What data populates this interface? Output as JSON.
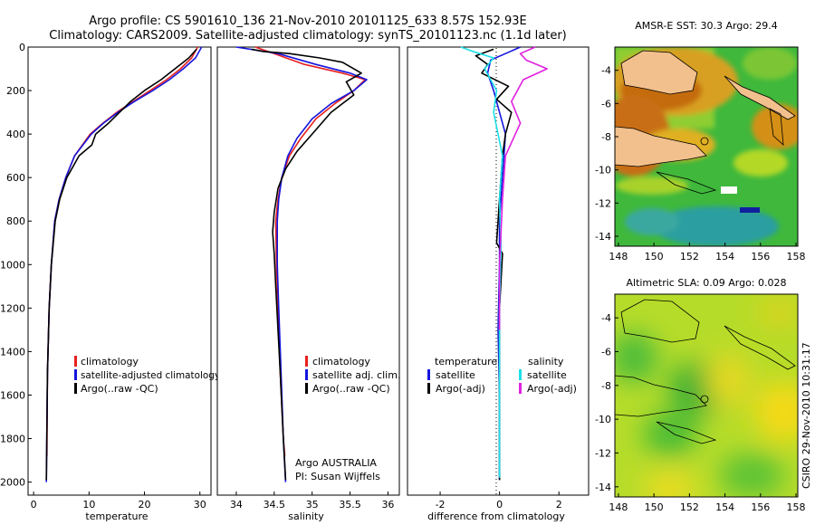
{
  "title_line1": "Argo profile: CS 5901610_136 21-Nov-2010 20101125_633 8.57S 152.93E",
  "title_line2": "Climatology: CARS2009. Satellite-adjusted climatology: synTS_20101123.nc (1.1d later)",
  "side_credit": "CSIRO 29-Nov-2010 10:31:17",
  "colors": {
    "climatology": "#e8201e",
    "satellite": "#1515dd",
    "argo": "#000000",
    "sat_salinity": "#18e0e8",
    "argo_adj_salinity": "#e020e0"
  },
  "chart_data": [
    {
      "type": "line",
      "xlabel": "temperature",
      "ylabel": "",
      "xlim": [
        -1,
        32
      ],
      "ylim": [
        2060,
        0
      ],
      "y_reversed": true,
      "xticks": [
        0,
        10,
        20,
        30
      ],
      "yticks": [
        0,
        200,
        400,
        600,
        800,
        1000,
        1200,
        1400,
        1600,
        1800,
        2000
      ],
      "legend": [
        "climatology",
        "satellite-adjusted climatology",
        "Argo(..raw -QC)"
      ],
      "legend_position": "lower-right",
      "series": [
        {
          "name": "climatology",
          "color": "#e8201e",
          "x": [
            29.6,
            28.5,
            26.5,
            24.0,
            21.0,
            18.0,
            15.0,
            12.5,
            10.2,
            8.8,
            7.4,
            5.8,
            4.6,
            3.8,
            3.2,
            2.8,
            2.5,
            2.4
          ],
          "y": [
            0,
            50,
            100,
            150,
            200,
            250,
            300,
            350,
            400,
            450,
            500,
            600,
            700,
            800,
            1000,
            1200,
            1500,
            1880
          ]
        },
        {
          "name": "satellite-adjusted climatology",
          "color": "#1515dd",
          "x": [
            30.3,
            29.2,
            27.0,
            24.5,
            21.5,
            18.2,
            15.2,
            12.6,
            10.4,
            8.9,
            7.4,
            5.8,
            4.6,
            3.8,
            3.2,
            2.8,
            2.5,
            2.3
          ],
          "y": [
            0,
            50,
            100,
            150,
            200,
            250,
            300,
            350,
            400,
            450,
            500,
            600,
            700,
            800,
            1000,
            1200,
            1500,
            2000
          ]
        },
        {
          "name": "Argo(..raw -QC)",
          "color": "#000000",
          "x": [
            29.4,
            28.0,
            25.5,
            23.0,
            20.0,
            17.5,
            15.5,
            13.5,
            11.2,
            10.5,
            8.2,
            6.0,
            4.7,
            3.9,
            3.2,
            2.8,
            2.5,
            2.3
          ],
          "y": [
            10,
            50,
            100,
            150,
            200,
            250,
            300,
            350,
            400,
            450,
            500,
            600,
            700,
            800,
            1000,
            1200,
            1500,
            1990
          ]
        }
      ]
    },
    {
      "type": "line",
      "xlabel": "salinity",
      "ylabel": "",
      "xlim": [
        33.75,
        36.15
      ],
      "ylim": [
        2060,
        0
      ],
      "y_reversed": true,
      "xticks": [
        34,
        34.5,
        35,
        35.5,
        36
      ],
      "legend": [
        "climatology",
        "satellite adj. clim.",
        "Argo(..raw -QC)"
      ],
      "legend_position": "lower-right",
      "annotation": [
        "Argo AUSTRALIA",
        "PI: Susan Wijffels"
      ],
      "series": [
        {
          "name": "climatology",
          "color": "#e8201e",
          "x": [
            34.25,
            34.5,
            34.9,
            35.4,
            35.7,
            35.55,
            35.3,
            35.05,
            34.85,
            34.7,
            34.6,
            34.55,
            34.52,
            34.53,
            34.55,
            34.58,
            34.62,
            34.64
          ],
          "y": [
            0,
            30,
            80,
            120,
            150,
            200,
            260,
            330,
            420,
            500,
            600,
            700,
            800,
            1000,
            1200,
            1500,
            1800,
            1880
          ]
        },
        {
          "name": "satellite adj. clim.",
          "color": "#1515dd",
          "x": [
            34.0,
            34.55,
            35.05,
            35.5,
            35.72,
            35.55,
            35.25,
            35.0,
            34.8,
            34.68,
            34.6,
            34.56,
            34.54,
            34.54,
            34.56,
            34.59,
            34.62,
            34.65
          ],
          "y": [
            0,
            30,
            80,
            120,
            150,
            200,
            260,
            330,
            420,
            500,
            600,
            700,
            800,
            1000,
            1200,
            1500,
            1800,
            2000
          ]
        },
        {
          "name": "Argo(..raw -QC)",
          "color": "#000000",
          "x": [
            34.2,
            34.35,
            34.7,
            35.1,
            35.4,
            35.65,
            35.45,
            35.55,
            35.25,
            35.0,
            34.8,
            34.65,
            34.55,
            34.5,
            34.48,
            34.5,
            34.52,
            34.55,
            34.58,
            34.62,
            34.65
          ],
          "y": [
            10,
            20,
            30,
            50,
            70,
            120,
            160,
            220,
            300,
            400,
            480,
            560,
            650,
            760,
            850,
            950,
            1100,
            1300,
            1500,
            1800,
            1990
          ]
        }
      ]
    },
    {
      "type": "line",
      "xlabel": "difference from climatology",
      "ylabel": "",
      "xlim": [
        -3.1,
        3.0
      ],
      "ylim": [
        2060,
        0
      ],
      "y_reversed": true,
      "xticks": [
        -2,
        0,
        2
      ],
      "legend_left_title": "temperature",
      "legend_right_title": "salinity",
      "legend": [
        "satellite",
        "Argo(-adj)",
        "satellite",
        "Argo(-adj)"
      ],
      "legend_position": "lower-center",
      "series": [
        {
          "name": "temperature satellite",
          "color": "#1515dd",
          "x": [
            0.7,
            0.2,
            -0.3,
            -0.4,
            -0.2,
            0.0,
            0.2,
            0.1,
            0.0,
            0.0,
            -0.05,
            0.0,
            0.0
          ],
          "y": [
            0,
            30,
            60,
            120,
            200,
            300,
            400,
            600,
            800,
            1000,
            1300,
            1600,
            1990
          ]
        },
        {
          "name": "temperature Argo(-adj)",
          "color": "#000000",
          "x": [
            -0.2,
            -0.8,
            -0.4,
            -0.6,
            0.3,
            -0.1,
            0.4,
            0.2,
            0.1,
            0.0,
            -0.1,
            0.1,
            0.0,
            0.0,
            0.0
          ],
          "y": [
            10,
            40,
            80,
            120,
            180,
            240,
            300,
            400,
            500,
            700,
            900,
            950,
            1200,
            1600,
            1990
          ]
        },
        {
          "name": "salinity satellite",
          "color": "#18e0e8",
          "x": [
            -1.3,
            -0.9,
            -0.2,
            -0.5,
            -0.1,
            -0.2,
            0.1,
            0.0,
            0.05,
            0.0,
            0.0,
            0.0
          ],
          "y": [
            0,
            20,
            50,
            100,
            200,
            300,
            500,
            700,
            900,
            1200,
            1600,
            1980
          ]
        },
        {
          "name": "salinity Argo(-adj)",
          "color": "#e020e0",
          "x": [
            1.2,
            0.7,
            0.9,
            1.6,
            0.8,
            0.4,
            0.7,
            0.2,
            0.1,
            0.0,
            0.0
          ],
          "y": [
            0,
            30,
            60,
            100,
            150,
            250,
            350,
            500,
            700,
            1000,
            1300
          ]
        }
      ]
    },
    {
      "type": "heatmap",
      "title": "AMSR-E SST: 30.3 Argo: 29.4",
      "xlim": [
        147.8,
        158.1
      ],
      "ylim": [
        -14.6,
        -2.6
      ],
      "xticks": [
        148,
        150,
        152,
        154,
        156,
        158
      ],
      "yticks": [
        -4,
        -6,
        -8,
        -10,
        -12,
        -14
      ],
      "profile_location": [
        152.93,
        -8.57
      ]
    },
    {
      "type": "heatmap",
      "title": "Altimetric SLA: 0.09 Argo: 0.028",
      "xlim": [
        147.8,
        158.1
      ],
      "ylim": [
        -14.6,
        -2.6
      ],
      "xticks": [
        148,
        150,
        152,
        154,
        156,
        158
      ],
      "yticks": [
        -4,
        -6,
        -8,
        -10,
        -12,
        -14
      ],
      "profile_location": [
        152.93,
        -8.57
      ]
    }
  ]
}
